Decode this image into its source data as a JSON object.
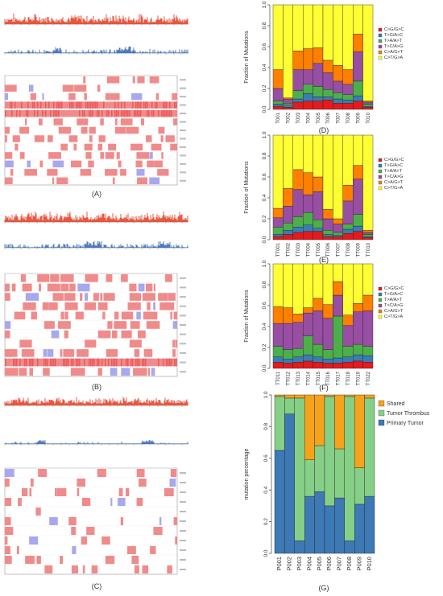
{
  "labels": {
    "A": "(A)",
    "B": "(B)",
    "C": "(C)",
    "D": "(D)",
    "E": "(E)",
    "F": "(F)",
    "G": "(G)"
  },
  "colors": {
    "cnv_red": "#e8452c",
    "cnv_blue": "#3a6db5",
    "gain": "#f08b8b",
    "gain_strong": "#ee5a5a",
    "loss": "#a8a8ee",
    "C>G/G>C": "#e41a1c",
    "T>G/A>C": "#377eb8",
    "T>A/A>T": "#4daf4a",
    "T>C/A>G": "#984ea3",
    "C>A/G>T": "#ff7f00",
    "C>T/G>A": "#ffff33",
    "Shared": "#f5a31a",
    "Tumor Thrombus": "#86cf86",
    "Primary Tumor": "#3d79b5"
  },
  "chart_data": [
    {
      "id": "D",
      "type": "bar",
      "stacked": true,
      "ylabel": "Fraction of Mutations",
      "ylim": [
        0,
        1
      ],
      "yticks": [
        "0.0",
        "0.2",
        "0.4",
        "0.6",
        "0.8",
        "1.0"
      ],
      "legend_position": "right",
      "categories": [
        "T001",
        "T002",
        "T003",
        "T004",
        "T005",
        "T006",
        "T007",
        "T008",
        "T009",
        "T010"
      ],
      "series": [
        {
          "name": "C>G/G>C",
          "values": [
            0.03,
            0.02,
            0.07,
            0.08,
            0.08,
            0.09,
            0.06,
            0.06,
            0.08,
            0.02
          ]
        },
        {
          "name": "T>G/A>C",
          "values": [
            0.02,
            0.02,
            0.03,
            0.07,
            0.04,
            0.03,
            0.04,
            0.03,
            0.05,
            0.01
          ]
        },
        {
          "name": "T>A/A>T",
          "values": [
            0.03,
            0.02,
            0.08,
            0.09,
            0.1,
            0.07,
            0.06,
            0.05,
            0.14,
            0.02
          ]
        },
        {
          "name": "T>C/A>G",
          "values": [
            0.12,
            0.04,
            0.2,
            0.14,
            0.22,
            0.16,
            0.11,
            0.1,
            0.28,
            0.02
          ]
        },
        {
          "name": "C>A/G>T",
          "values": [
            0.18,
            0.01,
            0.18,
            0.2,
            0.15,
            0.12,
            0.15,
            0.14,
            0.17,
            0.01
          ]
        },
        {
          "name": "C>T/G>A",
          "values": [
            0.62,
            0.89,
            0.44,
            0.42,
            0.41,
            0.53,
            0.58,
            0.62,
            0.28,
            0.92
          ]
        }
      ]
    },
    {
      "id": "E",
      "type": "bar",
      "stacked": true,
      "ylabel": "Fraction of Mutations",
      "ylim": [
        0,
        1
      ],
      "yticks": [
        "0.0",
        "0.2",
        "0.4",
        "0.6",
        "0.8",
        "1.0"
      ],
      "legend_position": "right",
      "categories": [
        "TT001",
        "TT002",
        "TT003",
        "TT004",
        "TT005",
        "TT006",
        "TT007",
        "TT008",
        "TT009",
        "TT010"
      ],
      "series": [
        {
          "name": "C>G/G>C",
          "values": [
            0.03,
            0.05,
            0.07,
            0.08,
            0.08,
            0.03,
            0.03,
            0.06,
            0.08,
            0.02
          ]
        },
        {
          "name": "T>G/A>C",
          "values": [
            0.02,
            0.04,
            0.05,
            0.06,
            0.03,
            0.02,
            0.01,
            0.04,
            0.05,
            0.01
          ]
        },
        {
          "name": "T>A/A>T",
          "values": [
            0.07,
            0.07,
            0.1,
            0.12,
            0.08,
            0.04,
            0.03,
            0.05,
            0.11,
            0.02
          ]
        },
        {
          "name": "T>C/A>G",
          "values": [
            0.09,
            0.16,
            0.26,
            0.17,
            0.27,
            0.11,
            0.08,
            0.22,
            0.34,
            0.02
          ]
        },
        {
          "name": "C>A/G>T",
          "values": [
            0.09,
            0.17,
            0.19,
            0.21,
            0.14,
            0.09,
            0.05,
            0.15,
            0.13,
            0.02
          ]
        },
        {
          "name": "C>T/G>A",
          "values": [
            0.7,
            0.51,
            0.33,
            0.36,
            0.4,
            0.71,
            0.8,
            0.48,
            0.29,
            0.91
          ]
        }
      ]
    },
    {
      "id": "F",
      "type": "bar",
      "stacked": true,
      "ylabel": "Fraction of Mutations",
      "ylim": [
        0,
        1
      ],
      "yticks": [
        "0.0",
        "0.2",
        "0.4",
        "0.6",
        "0.8",
        "1.0"
      ],
      "legend_position": "right",
      "categories": [
        "TT011",
        "TT012",
        "TT013",
        "TT014",
        "TT015",
        "TT016",
        "TT017",
        "TT018",
        "TT019",
        "TT022"
      ],
      "series": [
        {
          "name": "C>G/G>C",
          "values": [
            0.06,
            0.05,
            0.06,
            0.07,
            0.06,
            0.05,
            0.05,
            0.06,
            0.07,
            0.06
          ]
        },
        {
          "name": "T>G/A>C",
          "values": [
            0.05,
            0.04,
            0.05,
            0.06,
            0.05,
            0.04,
            0.05,
            0.05,
            0.06,
            0.06
          ]
        },
        {
          "name": "T>A/A>T",
          "values": [
            0.1,
            0.09,
            0.08,
            0.18,
            0.12,
            0.09,
            0.4,
            0.1,
            0.1,
            0.09
          ]
        },
        {
          "name": "T>C/A>G",
          "values": [
            0.22,
            0.25,
            0.25,
            0.22,
            0.32,
            0.3,
            0.2,
            0.2,
            0.31,
            0.34
          ]
        },
        {
          "name": "C>A/G>T",
          "values": [
            0.16,
            0.15,
            0.08,
            0.05,
            0.12,
            0.13,
            0.13,
            0.1,
            0.08,
            0.15
          ]
        },
        {
          "name": "C>T/G>A",
          "values": [
            0.41,
            0.42,
            0.48,
            0.42,
            0.33,
            0.39,
            0.17,
            0.49,
            0.38,
            0.3
          ]
        }
      ]
    },
    {
      "id": "G",
      "type": "bar",
      "stacked": true,
      "ylabel": "mutation percentage",
      "ylim": [
        0,
        1
      ],
      "yticks": [
        "0.0",
        "0.2",
        "0.4",
        "0.6",
        "0.8",
        "1.0"
      ],
      "legend_position": "right",
      "categories": [
        "P001",
        "P002",
        "P003",
        "P004",
        "P005",
        "P006",
        "P007",
        "P008",
        "P009",
        "P010"
      ],
      "series": [
        {
          "name": "Primary Tumor",
          "values": [
            0.65,
            0.88,
            0.08,
            0.36,
            0.39,
            0.3,
            0.35,
            0.08,
            0.31,
            0.36
          ]
        },
        {
          "name": "Tumor Thrombus",
          "values": [
            0.34,
            0.1,
            0.9,
            0.23,
            0.29,
            0.69,
            0.31,
            0.91,
            0.23,
            0.62
          ]
        },
        {
          "name": "Shared",
          "values": [
            0.01,
            0.02,
            0.02,
            0.41,
            0.32,
            0.01,
            0.34,
            0.01,
            0.46,
            0.02
          ]
        }
      ],
      "legend_order": [
        "Shared",
        "Tumor Thrombus",
        "Primary Tumor"
      ]
    }
  ]
}
